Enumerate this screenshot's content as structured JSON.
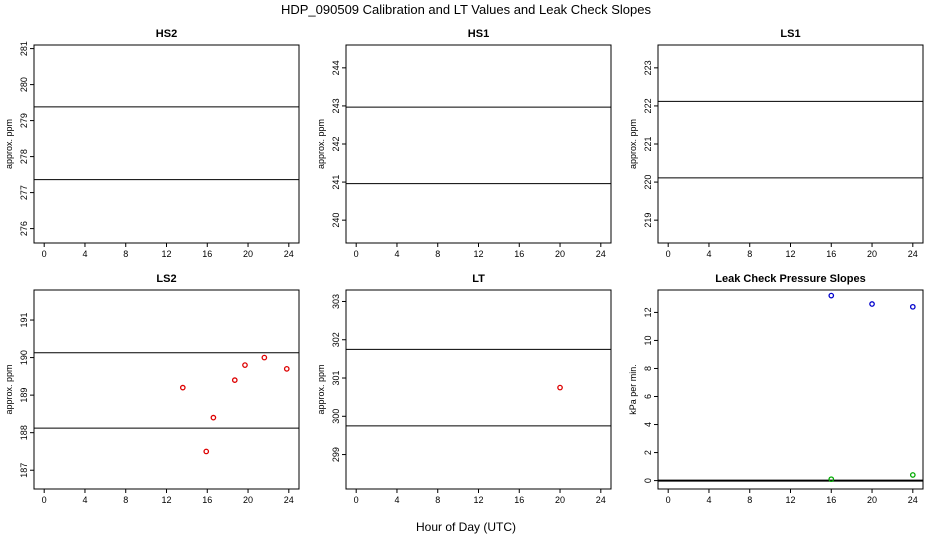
{
  "figure": {
    "title": "HDP_090509  Calibration and LT Values and Leak Check Slopes",
    "xlabel": "Hour of Day (UTC)"
  },
  "colors": {
    "cal_points": "#dd0000",
    "slope_blue": "#0000cc",
    "slope_green": "#00aa00",
    "axis": "#000000"
  },
  "chart_data": [
    {
      "type": "scatter",
      "title": "HS2",
      "ylabel": "approx. ppm",
      "xlim": [
        -1,
        25
      ],
      "ylim": [
        275.6,
        281.1
      ],
      "xticks": [
        0,
        4,
        8,
        12,
        16,
        20,
        24
      ],
      "yticks": [
        276,
        277,
        278,
        279,
        280,
        281
      ],
      "hlines": [
        279.38,
        277.36
      ],
      "series": []
    },
    {
      "type": "scatter",
      "title": "HS1",
      "ylabel": "approx. ppm",
      "xlim": [
        -1,
        25
      ],
      "ylim": [
        239.4,
        244.6
      ],
      "xticks": [
        0,
        4,
        8,
        12,
        16,
        20,
        24
      ],
      "yticks": [
        240,
        241,
        242,
        243,
        244
      ],
      "hlines": [
        242.97,
        240.96
      ],
      "series": []
    },
    {
      "type": "scatter",
      "title": "LS1",
      "ylabel": "approx. ppm",
      "xlim": [
        -1,
        25
      ],
      "ylim": [
        218.4,
        223.6
      ],
      "xticks": [
        0,
        4,
        8,
        12,
        16,
        20,
        24
      ],
      "yticks": [
        219,
        220,
        221,
        222,
        223
      ],
      "hlines": [
        222.12,
        220.11
      ],
      "series": []
    },
    {
      "type": "scatter",
      "title": "LS2",
      "ylabel": "approx. ppm",
      "xlim": [
        -1,
        25
      ],
      "ylim": [
        186.5,
        191.8
      ],
      "xticks": [
        0,
        4,
        8,
        12,
        16,
        20,
        24
      ],
      "yticks": [
        187,
        188,
        189,
        190,
        191
      ],
      "hlines": [
        190.13,
        188.12
      ],
      "series": [
        {
          "color": "#dd0000",
          "points": [
            [
              13.6,
              189.2
            ],
            [
              15.9,
              187.5
            ],
            [
              16.6,
              188.4
            ],
            [
              18.7,
              189.4
            ],
            [
              19.7,
              189.8
            ],
            [
              21.6,
              190.0
            ],
            [
              23.8,
              189.7
            ]
          ]
        }
      ]
    },
    {
      "type": "scatter",
      "title": "LT",
      "ylabel": "approx. ppm",
      "xlim": [
        -1,
        25
      ],
      "ylim": [
        298.1,
        303.3
      ],
      "xticks": [
        0,
        4,
        8,
        12,
        16,
        20,
        24
      ],
      "yticks": [
        299,
        300,
        301,
        302,
        303
      ],
      "hlines": [
        301.75,
        299.75
      ],
      "series": [
        {
          "color": "#dd0000",
          "points": [
            [
              20.0,
              300.75
            ]
          ]
        }
      ]
    },
    {
      "type": "scatter",
      "title": "Leak Check Pressure Slopes",
      "ylabel": "kPa per min.",
      "xlim": [
        -1,
        25
      ],
      "ylim": [
        -0.6,
        13.6
      ],
      "xticks": [
        0,
        4,
        8,
        12,
        16,
        20,
        24
      ],
      "yticks": [
        0,
        2,
        4,
        6,
        8,
        10,
        12
      ],
      "hlines": [
        0
      ],
      "hline_width": 2,
      "series": [
        {
          "color": "#0000cc",
          "points": [
            [
              16,
              13.2
            ],
            [
              20,
              12.6
            ],
            [
              24,
              12.4
            ]
          ]
        },
        {
          "color": "#00aa00",
          "points": [
            [
              16,
              0.1
            ],
            [
              24,
              0.4
            ]
          ]
        }
      ]
    }
  ]
}
